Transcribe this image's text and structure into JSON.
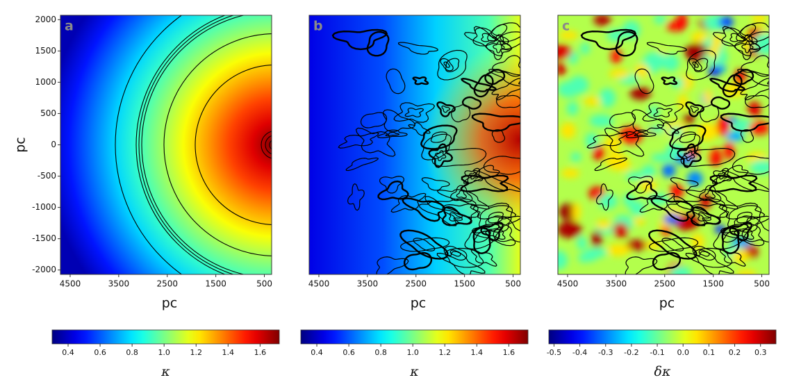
{
  "chart_data": [
    {
      "type": "heatmap",
      "panel_label": "a",
      "xlabel": "pc",
      "ylabel": "pc",
      "colormap": "jet",
      "xlim": [
        4700,
        350
      ],
      "xticks": [
        4500,
        3500,
        2500,
        1500,
        500
      ],
      "ylim": [
        -2070,
        2070
      ],
      "yticks": [
        -2000,
        -1500,
        -1000,
        -500,
        0,
        500,
        1000,
        1500,
        2000
      ],
      "colorbar": {
        "label": "κ",
        "lim": [
          0.3,
          1.72
        ],
        "ticks": [
          0.4,
          0.6,
          0.8,
          {
            "value": 1,
            "label": "1.0"
          },
          1.2,
          1.4,
          1.6
        ]
      }
    },
    {
      "type": "heatmap",
      "panel_label": "b",
      "xlabel": "pc",
      "colormap": "jet",
      "xlim": [
        4700,
        350
      ],
      "xticks": [
        4500,
        3500,
        2500,
        1500,
        500
      ],
      "ylim": [
        -2070,
        2070
      ],
      "colorbar": {
        "label": "κ",
        "lim": [
          0.3,
          1.72
        ],
        "ticks": [
          0.4,
          0.6,
          0.8,
          {
            "value": 1,
            "label": "1.0"
          },
          1.2,
          1.4,
          1.6
        ]
      }
    },
    {
      "type": "heatmap",
      "panel_label": "c",
      "xlabel": "pc",
      "colormap": "jet",
      "xlim": [
        4700,
        350
      ],
      "xticks": [
        4500,
        3500,
        2500,
        1500,
        500
      ],
      "ylim": [
        -2070,
        2070
      ],
      "colorbar": {
        "label": "δκ",
        "lim": [
          -0.52,
          0.36
        ],
        "ticks": [
          -0.5,
          -0.4,
          -0.3,
          -0.2,
          -0.1,
          {
            "value": 0,
            "label": "0.0"
          },
          0.1,
          0.2,
          0.3
        ]
      }
    }
  ]
}
